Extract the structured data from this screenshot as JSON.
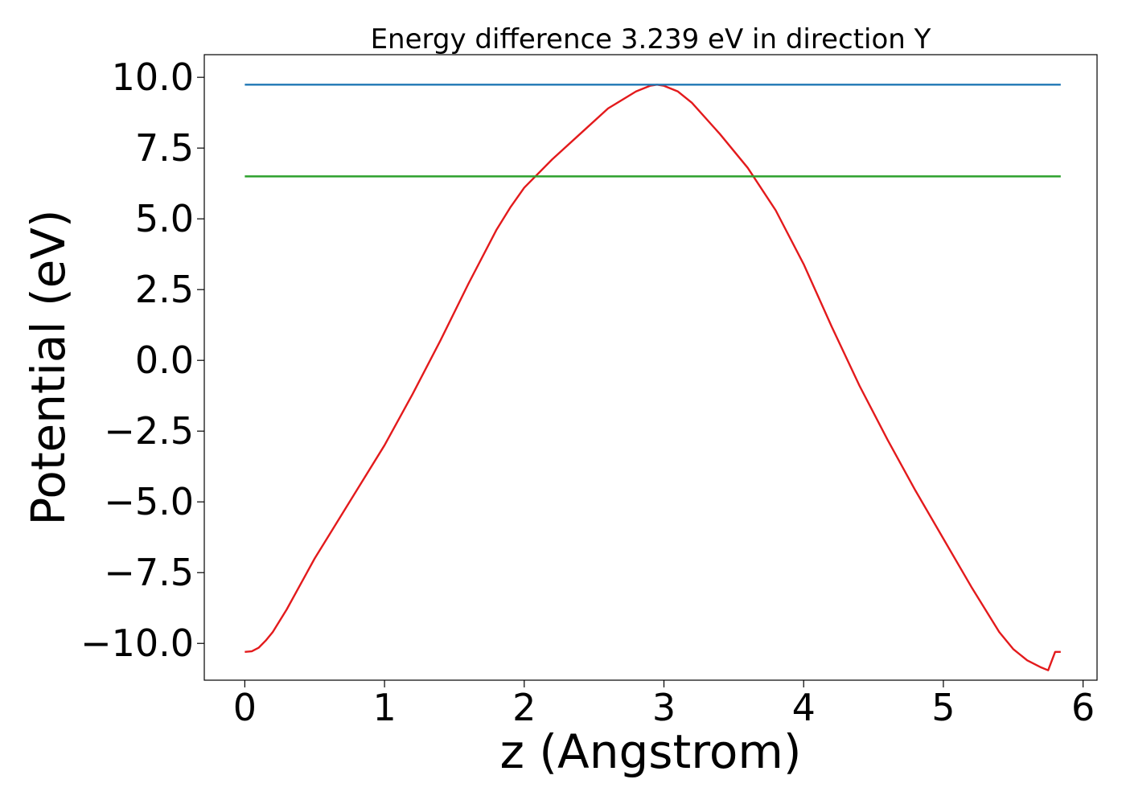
{
  "chart_data": {
    "type": "line",
    "title": "Energy difference 3.239 eV in direction Y",
    "xlabel": "z (Angstrom)",
    "ylabel": "Potential (eV)",
    "xlim": [
      -0.29,
      6.1
    ],
    "ylim": [
      -11.3,
      10.8
    ],
    "xticks": [
      0,
      1,
      2,
      3,
      4,
      5,
      6
    ],
    "xtick_labels": [
      "0",
      "1",
      "2",
      "3",
      "4",
      "5",
      "6"
    ],
    "yticks": [
      10.0,
      7.5,
      5.0,
      2.5,
      0.0,
      -2.5,
      -5.0,
      -7.5,
      -10.0
    ],
    "ytick_labels": [
      "10.0",
      "7.5",
      "5.0",
      "2.5",
      "0.0",
      "−2.5",
      "−5.0",
      "−7.5",
      "−10.0"
    ],
    "grid": false,
    "legend": "none",
    "series": [
      {
        "color": "#e31a1c",
        "x": [
          0.0,
          0.05,
          0.1,
          0.15,
          0.2,
          0.3,
          0.4,
          0.5,
          0.6,
          0.8,
          1.0,
          1.2,
          1.4,
          1.6,
          1.8,
          1.9,
          2.0,
          2.2,
          2.4,
          2.6,
          2.8,
          2.9,
          2.95,
          3.0,
          3.1,
          3.2,
          3.4,
          3.6,
          3.8,
          4.0,
          4.2,
          4.4,
          4.6,
          4.8,
          5.0,
          5.2,
          5.4,
          5.5,
          5.6,
          5.7,
          5.75,
          5.8,
          5.84
        ],
        "y": [
          -10.3,
          -10.28,
          -10.15,
          -9.9,
          -9.6,
          -8.8,
          -7.9,
          -7.0,
          -6.2,
          -4.6,
          -3.0,
          -1.2,
          0.7,
          2.7,
          4.6,
          5.4,
          6.1,
          7.1,
          8.0,
          8.9,
          9.5,
          9.7,
          9.74,
          9.7,
          9.5,
          9.1,
          8.0,
          6.8,
          5.3,
          3.4,
          1.2,
          -0.9,
          -2.8,
          -4.6,
          -6.3,
          -8.0,
          -9.6,
          -10.2,
          -10.6,
          -10.85,
          -10.95,
          -10.3,
          -10.3
        ]
      },
      {
        "color": "#1f77b4",
        "x": [
          0.0,
          5.84
        ],
        "y": [
          9.74,
          9.74
        ]
      },
      {
        "color": "#2ca02c",
        "x": [
          0.0,
          5.84
        ],
        "y": [
          6.5,
          6.5
        ]
      }
    ]
  }
}
